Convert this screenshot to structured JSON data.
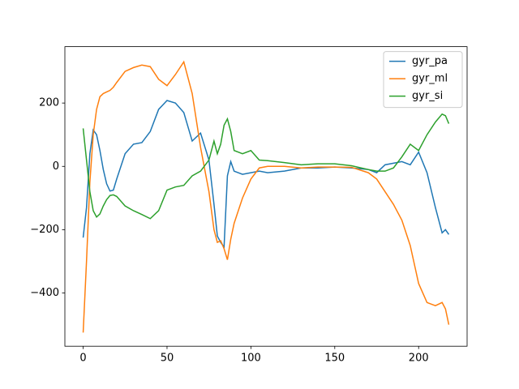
{
  "chart_data": {
    "type": "line",
    "x": [
      0,
      2,
      4,
      6,
      8,
      10,
      12,
      14,
      16,
      18,
      20,
      25,
      30,
      35,
      40,
      45,
      50,
      55,
      60,
      65,
      70,
      75,
      78,
      80,
      82,
      84,
      86,
      88,
      90,
      95,
      100,
      105,
      110,
      120,
      130,
      140,
      150,
      160,
      170,
      175,
      180,
      185,
      190,
      195,
      200,
      205,
      210,
      214,
      216,
      218
    ],
    "series": [
      {
        "name": "gyr_pa",
        "color": "#1f77b4",
        "values": [
          -225,
          -130,
          40,
          115,
          100,
          50,
          -10,
          -55,
          -78,
          -75,
          -40,
          40,
          70,
          75,
          110,
          180,
          208,
          200,
          170,
          80,
          105,
          20,
          -120,
          -220,
          -240,
          -255,
          -30,
          15,
          -15,
          -25,
          -20,
          -15,
          -20,
          -15,
          -5,
          -5,
          -2,
          -5,
          -10,
          -20,
          5,
          10,
          15,
          5,
          45,
          -20,
          -130,
          -210,
          -200,
          -215
        ]
      },
      {
        "name": "gyr_ml",
        "color": "#ff7f0e",
        "values": [
          -525,
          -300,
          -50,
          100,
          180,
          220,
          230,
          235,
          240,
          250,
          265,
          300,
          312,
          320,
          315,
          275,
          255,
          290,
          330,
          230,
          60,
          -80,
          -200,
          -240,
          -235,
          -260,
          -295,
          -230,
          -180,
          -100,
          -40,
          -5,
          0,
          0,
          -5,
          -2,
          -2,
          -3,
          -20,
          -40,
          -80,
          -120,
          -170,
          -250,
          -370,
          -430,
          -440,
          -430,
          -450,
          -500
        ]
      },
      {
        "name": "gyr_si",
        "color": "#2ca02c",
        "values": [
          120,
          20,
          -80,
          -140,
          -160,
          -150,
          -125,
          -105,
          -92,
          -90,
          -95,
          -125,
          -140,
          -152,
          -165,
          -140,
          -75,
          -65,
          -60,
          -30,
          -15,
          20,
          80,
          40,
          70,
          130,
          150,
          110,
          50,
          40,
          50,
          20,
          18,
          12,
          5,
          8,
          8,
          2,
          -10,
          -15,
          -15,
          -5,
          30,
          70,
          50,
          100,
          140,
          165,
          160,
          135
        ]
      }
    ],
    "xlim": [
      -10.9,
      228.9
    ],
    "xticks": [
      0,
      50,
      100,
      150,
      200
    ],
    "ylim": [
      -568,
      378
    ],
    "yticks": [
      {
        "value": -400,
        "label": "−400"
      },
      {
        "value": -200,
        "label": "−200"
      },
      0,
      200
    ],
    "legend": "upper right"
  }
}
